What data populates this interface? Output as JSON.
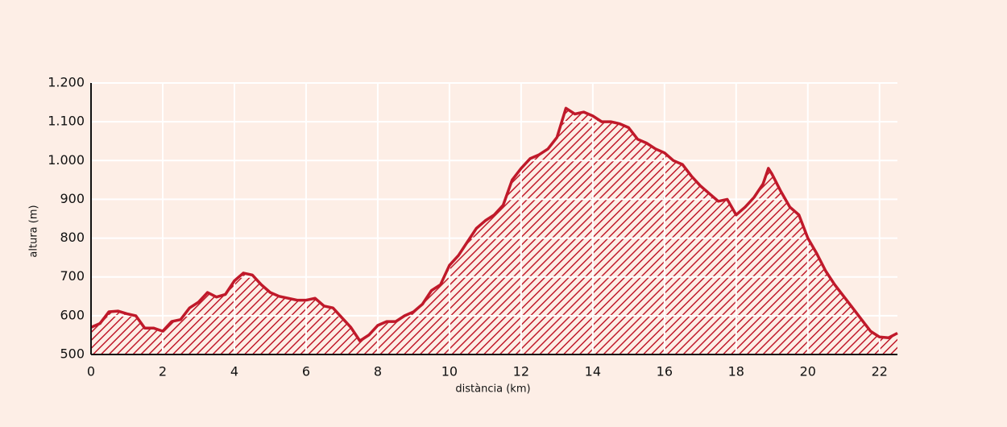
{
  "chart_data": {
    "type": "area",
    "xlabel": "distància (km)",
    "ylabel": "altura (m)",
    "color": "#c0192a",
    "grid": true,
    "xlim": [
      0,
      22.5
    ],
    "xticks": [
      0,
      2,
      4,
      6,
      8,
      10,
      12,
      14,
      16,
      18,
      20,
      22
    ],
    "ylim": [
      500,
      1200
    ],
    "yticks": [
      500,
      600,
      700,
      800,
      900,
      {
        "value": 1000,
        "label": "1.000"
      },
      {
        "value": 1100,
        "label": "1.100"
      },
      {
        "value": 1200,
        "label": "1.200"
      }
    ],
    "x": [
      0,
      0.25,
      0.5,
      0.75,
      1,
      1.25,
      1.5,
      1.75,
      2,
      2.25,
      2.5,
      2.75,
      3,
      3.25,
      3.5,
      3.75,
      4,
      4.25,
      4.5,
      4.75,
      5,
      5.25,
      5.5,
      5.75,
      6,
      6.25,
      6.5,
      6.75,
      7,
      7.25,
      7.5,
      7.75,
      8,
      8.25,
      8.5,
      8.75,
      9,
      9.25,
      9.5,
      9.75,
      10,
      10.25,
      10.5,
      10.75,
      11,
      11.25,
      11.5,
      11.75,
      12,
      12.25,
      12.5,
      12.75,
      13,
      13.25,
      13.5,
      13.75,
      14,
      14.25,
      14.5,
      14.75,
      15,
      15.25,
      15.5,
      15.75,
      16,
      16.25,
      16.5,
      16.75,
      17,
      17.25,
      17.5,
      17.75,
      18,
      18.25,
      18.5,
      18.75,
      18.9,
      19,
      19.25,
      19.5,
      19.75,
      20,
      20.25,
      20.5,
      20.75,
      21,
      21.25,
      21.5,
      21.75,
      22,
      22.25,
      22.5
    ],
    "values": [
      570,
      580,
      610,
      612,
      605,
      600,
      568,
      568,
      560,
      585,
      590,
      620,
      635,
      660,
      648,
      655,
      690,
      710,
      705,
      680,
      660,
      650,
      645,
      640,
      640,
      645,
      625,
      620,
      595,
      570,
      535,
      550,
      575,
      585,
      585,
      600,
      610,
      630,
      665,
      680,
      730,
      755,
      790,
      825,
      845,
      860,
      885,
      950,
      980,
      1005,
      1015,
      1030,
      1060,
      1135,
      1120,
      1125,
      1115,
      1100,
      1100,
      1095,
      1085,
      1055,
      1045,
      1030,
      1020,
      1000,
      990,
      960,
      935,
      915,
      895,
      900,
      860,
      880,
      905,
      940,
      980,
      965,
      920,
      880,
      860,
      800,
      760,
      715,
      680,
      650,
      620,
      590,
      560,
      545,
      543,
      555
    ]
  }
}
